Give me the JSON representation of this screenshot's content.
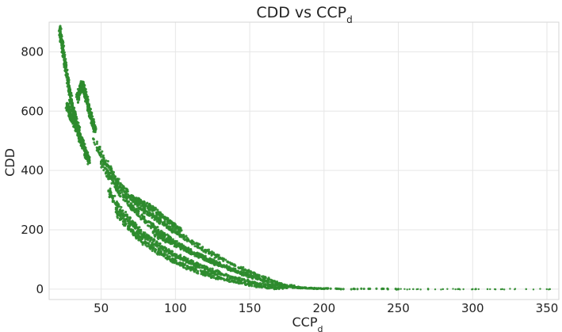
{
  "chart_data": {
    "type": "scatter",
    "title": {
      "main": "CDD vs CCP",
      "sub": "d"
    },
    "xlabel": {
      "main": "CCP",
      "sub": "d"
    },
    "ylabel": "CDD",
    "xlim": [
      15,
      358
    ],
    "ylim": [
      -35,
      900
    ],
    "xticks": [
      50,
      100,
      150,
      200,
      250,
      300,
      350
    ],
    "yticks": [
      0,
      200,
      400,
      600,
      800
    ],
    "grid": true,
    "series": [
      {
        "color": "#2e8b2e",
        "marker": "circle",
        "point_groups": [
          {
            "x": [
              22,
              23,
              24,
              25,
              26,
              27,
              28,
              29,
              30,
              31,
              32,
              33,
              34,
              35
            ],
            "y": [
              875,
              845,
              815,
              785,
              750,
              720,
              690,
              660,
              630,
              605,
              585,
              565,
              548,
              530
            ]
          },
          {
            "x": [
              27,
              28,
              29,
              30,
              31,
              32,
              33,
              34,
              35,
              36,
              37,
              38,
              39,
              40,
              41,
              42
            ],
            "y": [
              620,
              610,
              595,
              580,
              570,
              560,
              548,
              535,
              520,
              505,
              495,
              485,
              470,
              455,
              440,
              428
            ]
          },
          {
            "x": [
              34,
              35,
              36,
              37,
              38,
              39,
              40,
              41,
              42,
              43,
              44,
              45,
              46
            ],
            "y": [
              640,
              660,
              675,
              690,
              680,
              665,
              645,
              625,
              600,
              585,
              568,
              550,
              530
            ]
          },
          {
            "x": [
              45,
              50,
              55,
              60,
              65,
              70,
              75,
              80,
              85,
              90,
              95,
              100,
              105,
              110,
              115,
              120,
              125,
              130,
              135,
              140,
              145,
              150,
              155,
              160,
              165,
              170,
              175,
              180,
              185,
              190,
              195,
              200
            ],
            "y": [
              505,
              455,
              410,
              370,
              338,
              310,
              285,
              263,
              245,
              228,
              210,
              193,
              178,
              160,
              147,
              132,
              118,
              105,
              92,
              80,
              70,
              58,
              48,
              38,
              28,
              20,
              13,
              8,
              5,
              3,
              2,
              1
            ]
          },
          {
            "x": [
              50,
              55,
              60,
              65,
              70,
              75,
              80,
              85,
              90,
              95,
              100,
              105,
              110,
              115,
              120,
              125,
              130,
              135,
              140,
              145,
              150,
              155,
              160,
              165,
              170,
              175,
              180,
              185
            ],
            "y": [
              430,
              385,
              345,
              310,
              280,
              255,
              230,
              210,
              190,
              173,
              157,
              143,
              128,
              115,
              102,
              90,
              80,
              70,
              60,
              50,
              42,
              35,
              28,
              20,
              14,
              9,
              6,
              4
            ]
          },
          {
            "x": [
              55,
              60,
              65,
              70,
              75,
              80,
              85,
              90,
              95,
              100,
              105,
              110,
              115,
              120,
              125,
              130,
              135,
              140,
              145,
              150,
              155,
              160,
              165,
              170,
              175
            ],
            "y": [
              330,
              290,
              255,
              225,
              200,
              178,
              160,
              143,
              128,
              115,
              103,
              92,
              82,
              72,
              62,
              53,
              45,
              38,
              31,
              25,
              19,
              14,
              10,
              7,
              4
            ]
          },
          {
            "x": [
              60,
              65,
              70,
              75,
              80,
              85,
              90,
              95,
              100,
              105,
              110,
              115,
              120,
              125,
              130,
              135,
              140,
              145,
              150,
              155,
              160,
              165,
              170
            ],
            "y": [
              260,
              228,
              200,
              176,
              155,
              137,
              120,
              106,
              93,
              81,
              70,
              60,
              52,
              44,
              37,
              31,
              25,
              20,
              15,
              11,
              8,
              5,
              3
            ]
          },
          {
            "x": [
              72,
              76,
              80,
              84,
              88,
              92,
              96,
              100,
              104
            ],
            "y": [
              300,
              295,
              285,
              272,
              258,
              244,
              228,
              213,
              198
            ]
          },
          {
            "x": [
              85,
              90,
              95,
              100,
              105,
              110,
              115,
              120,
              125,
              130,
              135,
              140,
              145,
              150,
              155,
              160
            ],
            "y": [
              190,
              175,
              162,
              150,
              138,
              126,
              115,
              104,
              94,
              84,
              74,
              65,
              56,
              48,
              40,
              33
            ]
          },
          {
            "x": [
              100,
              110,
              120,
              130,
              140,
              150,
              160,
              170,
              180,
              190,
              200,
              210,
              220,
              230,
              240,
              250,
              260,
              270,
              280,
              290,
              300,
              310,
              320,
              336,
              352
            ],
            "y": [
              110,
              88,
              68,
              50,
              35,
              22,
              14,
              8,
              5,
              3,
              2,
              1,
              1,
              1,
              1,
              0,
              0,
              0,
              0,
              0,
              0,
              0,
              0,
              0,
              0
            ]
          }
        ]
      }
    ]
  }
}
